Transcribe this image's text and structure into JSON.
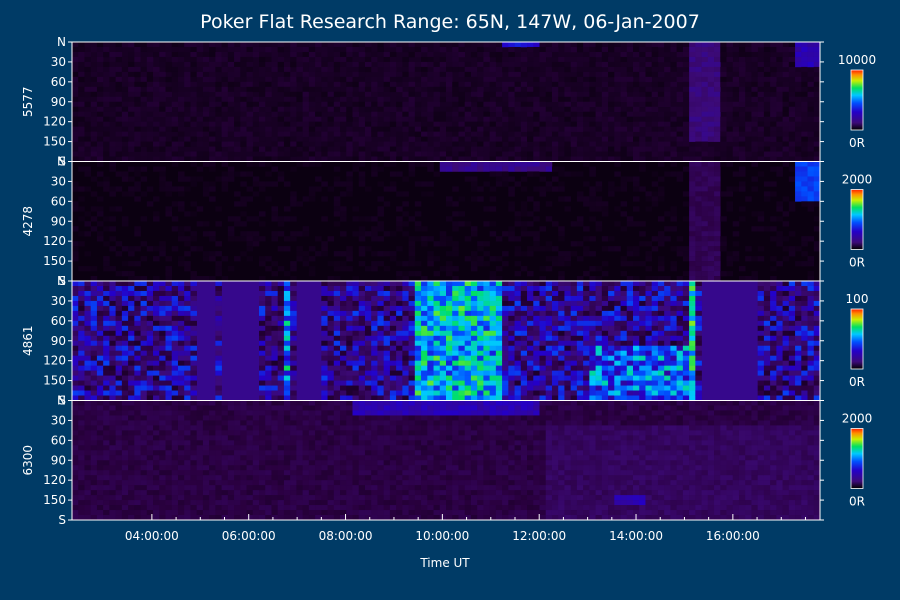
{
  "chart_data": {
    "type": "heatmap",
    "title": "Poker Flat Research Range: 65N, 147W, 06-Jan-2007",
    "xlabel": "Time UT",
    "x_tick_labels": [
      "04:00:00",
      "06:00:00",
      "08:00:00",
      "10:00:00",
      "12:00:00",
      "14:00:00",
      "16:00:00"
    ],
    "x_tick_hours": [
      4,
      6,
      8,
      10,
      12,
      14,
      16
    ],
    "xlim_hours": [
      2.35,
      17.8
    ],
    "y_tick_labels": [
      "N",
      "30",
      "60",
      "90",
      "120",
      "150",
      "S"
    ],
    "y_tick_values": [
      0,
      30,
      60,
      90,
      120,
      150,
      180
    ],
    "ylim": [
      0,
      180
    ],
    "panels": [
      {
        "wavelength": "5577",
        "colorbar_max": "10000",
        "colorbar_min": "0R",
        "cb_max": 10000,
        "background_level": 0.06,
        "features": [
          {
            "t0": 11.2,
            "t1": 12.0,
            "a0": 0,
            "a1": 10,
            "level": 0.35
          },
          {
            "t0": 15.1,
            "t1": 15.8,
            "a0": 0,
            "a1": 150,
            "level": 0.22
          },
          {
            "t0": 17.3,
            "t1": 17.8,
            "a0": 0,
            "a1": 40,
            "level": 0.3
          }
        ]
      },
      {
        "wavelength": "4278",
        "colorbar_max": "2000",
        "colorbar_min": "0R",
        "cb_max": 2000,
        "background_level": 0.03,
        "features": [
          {
            "t0": 10.0,
            "t1": 12.2,
            "a0": 0,
            "a1": 12,
            "level": 0.25
          },
          {
            "t0": 15.1,
            "t1": 15.7,
            "a0": 0,
            "a1": 180,
            "level": 0.15
          },
          {
            "t0": 17.3,
            "t1": 17.8,
            "a0": 0,
            "a1": 60,
            "level": 0.42
          }
        ]
      },
      {
        "wavelength": "4861",
        "colorbar_max": "100",
        "colorbar_min": "0R",
        "cb_max": 100,
        "background_level": 0.25,
        "dark_intervals": [
          [
            4.9,
            5.3
          ],
          [
            5.5,
            6.2
          ],
          [
            6.95,
            7.45
          ],
          [
            15.35,
            16.5
          ]
        ],
        "features": [
          {
            "t0": 9.45,
            "t1": 11.2,
            "a0": 0,
            "a1": 180,
            "level": 0.55
          },
          {
            "t0": 6.7,
            "t1": 6.9,
            "a0": 0,
            "a1": 180,
            "level": 0.5
          },
          {
            "t0": 13.0,
            "t1": 15.2,
            "a0": 100,
            "a1": 180,
            "level": 0.45
          },
          {
            "t0": 15.05,
            "t1": 15.2,
            "a0": 0,
            "a1": 180,
            "level": 0.6
          }
        ]
      },
      {
        "wavelength": "6300",
        "colorbar_max": "2000",
        "colorbar_min": "0R",
        "cb_max": 2000,
        "background_level": 0.12,
        "features": [
          {
            "t0": 8.2,
            "t1": 12.0,
            "a0": 0,
            "a1": 20,
            "level": 0.3
          },
          {
            "t0": 12.1,
            "t1": 17.8,
            "a0": 40,
            "a1": 180,
            "level": 0.17
          },
          {
            "t0": 13.5,
            "t1": 14.2,
            "a0": 140,
            "a1": 160,
            "level": 0.3
          }
        ]
      }
    ],
    "colormap": [
      "#000000",
      "#2a0040",
      "#3c0a78",
      "#2400c8",
      "#0050ff",
      "#00c8ff",
      "#00e060",
      "#c8f000",
      "#ff9000",
      "#ff2000"
    ]
  }
}
